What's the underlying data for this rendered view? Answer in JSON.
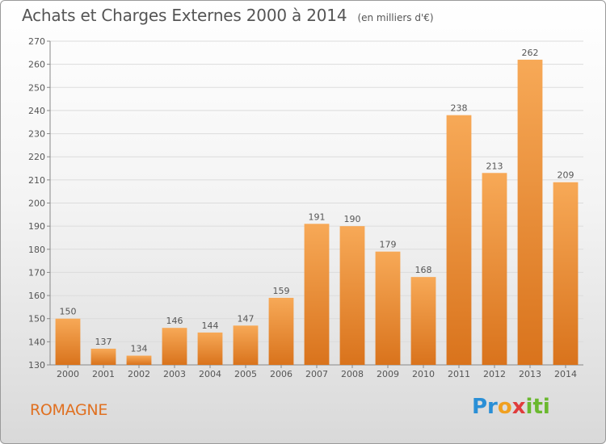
{
  "title": "Achats et Charges Externes 2000 à 2014",
  "subtitle": "(en milliers d'€)",
  "place": "ROMAGNE",
  "logo": {
    "p1": "Pr",
    "p2": "o",
    "p3": "x",
    "p4": "iti"
  },
  "colors": {
    "bar_light": "#f7a957",
    "bar_dark": "#d9731c",
    "text": "#555555",
    "place": "#e07020"
  },
  "chart_data": {
    "type": "bar",
    "title": "Achats et Charges Externes 2000 à 2014",
    "subtitle": "(en milliers d'€)",
    "xlabel": "",
    "ylabel": "",
    "categories": [
      "2000",
      "2001",
      "2002",
      "2003",
      "2004",
      "2005",
      "2006",
      "2007",
      "2008",
      "2009",
      "2010",
      "2011",
      "2012",
      "2013",
      "2014"
    ],
    "values": [
      150,
      137,
      134,
      146,
      144,
      147,
      159,
      191,
      190,
      179,
      168,
      238,
      213,
      262,
      209
    ],
    "ylim": [
      130,
      270
    ],
    "yticks": [
      130,
      140,
      150,
      160,
      170,
      180,
      190,
      200,
      210,
      220,
      230,
      240,
      250,
      260,
      270
    ],
    "grid": true,
    "data_labels": true
  }
}
